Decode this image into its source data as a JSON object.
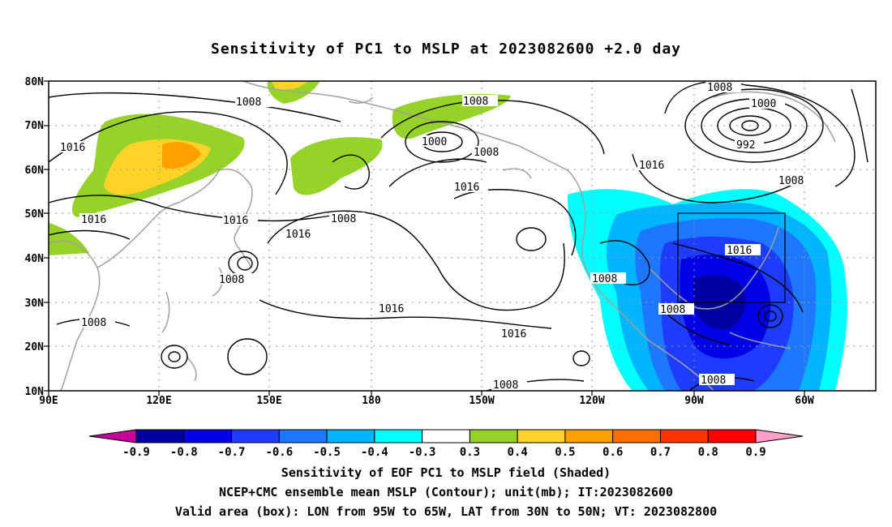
{
  "title": "Sensitivity of PC1 to MSLP at 2023082600 +2.0 day",
  "map": {
    "lat_labels": [
      "80N",
      "70N",
      "60N",
      "50N",
      "40N",
      "30N",
      "20N",
      "10N"
    ],
    "lon_labels": [
      "90E",
      "120E",
      "150E",
      "180",
      "150W",
      "120W",
      "90W",
      "60W"
    ],
    "contour_labels": [
      "1008",
      "1016",
      "1016",
      "1008",
      "1008",
      "1016",
      "1008",
      "1000",
      "1008",
      "1016",
      "1008",
      "1016",
      "1016",
      "1016",
      "1008",
      "1000",
      "992",
      "1008",
      "1016",
      "1008",
      "1016",
      "1008",
      "1008",
      "1008"
    ],
    "valid_box": {
      "lon_from": "95W",
      "lon_to": "65W",
      "lat_from": "30N",
      "lat_to": "50N"
    }
  },
  "colorbar": {
    "labels": [
      "-0.9",
      "-0.8",
      "-0.7",
      "-0.6",
      "-0.5",
      "-0.4",
      "-0.3",
      "0.3",
      "0.4",
      "0.5",
      "0.6",
      "0.7",
      "0.8",
      "0.9"
    ],
    "colors": [
      "#0000a0",
      "#0000e6",
      "#1e3cff",
      "#1e78ff",
      "#00b4ff",
      "#00ffff",
      "#ffffff",
      "#96d228",
      "#ffd228",
      "#ffa000",
      "#ff6e00",
      "#ff3200",
      "#ff0000"
    ],
    "low_arrow_color": "#c8009b",
    "high_arrow_color": "#ffa0c8"
  },
  "captions": [
    "Sensitivity of EOF PC1 to MSLP field (Shaded)",
    "NCEP+CMC ensemble mean MSLP (Contour); unit(mb); IT:2023082600",
    "Valid area (box): LON from 95W to 65W, LAT from 30N to 50N; VT: 2023082800"
  ]
}
